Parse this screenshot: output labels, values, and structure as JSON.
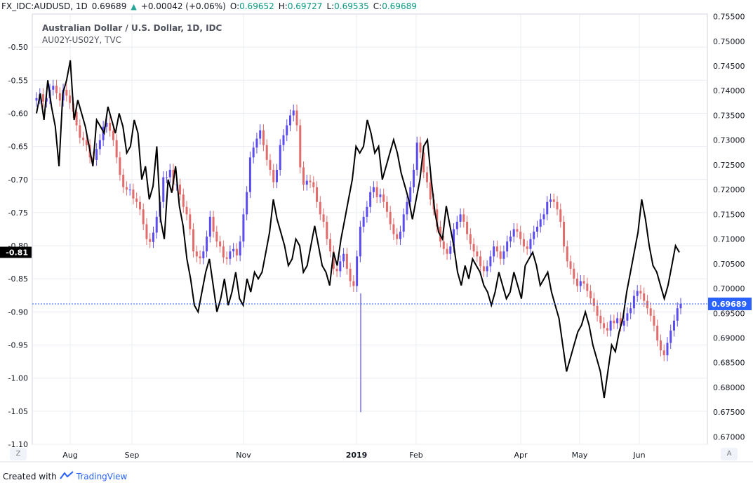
{
  "header": {
    "symbol": "FX_IDC:AUDUSD, 1D",
    "last": "0.69689",
    "change": "+0.00042 (+0.06%)",
    "o_label": "O:",
    "o_val": "0.69652",
    "h_label": "H:",
    "h_val": "0.69727",
    "l_label": "L:",
    "l_val": "0.69535",
    "c_label": "C:",
    "c_val": "0.69689"
  },
  "legend": {
    "title": "Australian Dollar / U.S. Dollar, 1D, IDC",
    "series2": "AU02Y-US02Y, TVC"
  },
  "footer": {
    "created_with": "Created with",
    "brand": "TradingView"
  },
  "buttons": {
    "left": "Z",
    "right": "A"
  },
  "colors": {
    "up": "#5b4cf0",
    "down": "#e26b6b",
    "spread": "#000000",
    "price_tag": "#2962ff",
    "grid": "#e9ecf2"
  },
  "chart_data": {
    "type": "line",
    "title": "Australian Dollar / U.S. Dollar, 1D, IDC",
    "x_tick_labels": [
      "Aug",
      "Sep",
      "Nov",
      "2019",
      "Feb",
      "Apr",
      "May",
      "Jun"
    ],
    "left_axis": {
      "label": "AU02Y-US02Y",
      "ylim": [
        -1.1,
        -0.45
      ],
      "ticks": [
        "-0.50",
        "-0.55",
        "-0.60",
        "-0.65",
        "-0.70",
        "-0.75",
        "-0.80",
        "-0.85",
        "-0.90",
        "-0.95",
        "-1.00",
        "-1.05",
        "-1.10"
      ],
      "current": "-0.81"
    },
    "right_axis": {
      "label": "AUDUSD",
      "ylim": [
        0.6685,
        0.7555
      ],
      "ticks": [
        "0.75500",
        "0.75000",
        "0.74500",
        "0.74000",
        "0.73500",
        "0.73000",
        "0.72500",
        "0.72000",
        "0.71500",
        "0.71000",
        "0.70500",
        "0.70000",
        "0.69500",
        "0.69000",
        "0.68500",
        "0.68000",
        "0.67500",
        "0.67000"
      ],
      "current": "0.69689"
    },
    "series": [
      {
        "name": "AU02Y-US02Y, TVC",
        "type": "line",
        "values": [
          -0.6,
          -0.57,
          -0.61,
          -0.55,
          -0.59,
          -0.62,
          -0.68,
          -0.57,
          -0.55,
          -0.52,
          -0.61,
          -0.58,
          -0.6,
          -0.62,
          -0.65,
          -0.68,
          -0.61,
          -0.62,
          -0.63,
          -0.59,
          -0.61,
          -0.63,
          -0.6,
          -0.62,
          -0.66,
          -0.65,
          -0.61,
          -0.63,
          -0.7,
          -0.68,
          -0.73,
          -0.71,
          -0.65,
          -0.76,
          -0.79,
          -0.7,
          -0.72,
          -0.68,
          -0.74,
          -0.77,
          -0.82,
          -0.85,
          -0.89,
          -0.9,
          -0.87,
          -0.84,
          -0.82,
          -0.86,
          -0.9,
          -0.88,
          -0.85,
          -0.89,
          -0.87,
          -0.84,
          -0.88,
          -0.89,
          -0.85,
          -0.87,
          -0.84,
          -0.85,
          -0.84,
          -0.81,
          -0.78,
          -0.73,
          -0.76,
          -0.78,
          -0.8,
          -0.83,
          -0.82,
          -0.79,
          -0.8,
          -0.84,
          -0.83,
          -0.8,
          -0.77,
          -0.8,
          -0.83,
          -0.84,
          -0.86,
          -0.81,
          -0.83,
          -0.79,
          -0.76,
          -0.73,
          -0.7,
          -0.65,
          -0.66,
          -0.65,
          -0.61,
          -0.63,
          -0.66,
          -0.65,
          -0.7,
          -0.68,
          -0.66,
          -0.64,
          -0.66,
          -0.69,
          -0.71,
          -0.73,
          -0.76,
          -0.73,
          -0.7,
          -0.65,
          -0.64,
          -0.7,
          -0.75,
          -0.78,
          -0.79,
          -0.74,
          -0.77,
          -0.8,
          -0.84,
          -0.86,
          -0.83,
          -0.85,
          -0.82,
          -0.83,
          -0.84,
          -0.86,
          -0.87,
          -0.89,
          -0.87,
          -0.84,
          -0.86,
          -0.88,
          -0.87,
          -0.84,
          -0.86,
          -0.88,
          -0.83,
          -0.82,
          -0.81,
          -0.83,
          -0.86,
          -0.85,
          -0.84,
          -0.87,
          -0.89,
          -0.91,
          -0.95,
          -0.99,
          -0.97,
          -0.95,
          -0.93,
          -0.92,
          -0.9,
          -0.92,
          -0.95,
          -0.97,
          -0.99,
          -1.03,
          -0.99,
          -0.95,
          -0.96,
          -0.93,
          -0.91,
          -0.87,
          -0.84,
          -0.81,
          -0.78,
          -0.73,
          -0.76,
          -0.8,
          -0.83,
          -0.84,
          -0.86,
          -0.88,
          -0.86,
          -0.83,
          -0.8,
          -0.81
        ]
      },
      {
        "name": "AUDUSD",
        "type": "candlestick",
        "close": [
          0.7385,
          0.7393,
          0.7378,
          0.7385,
          0.7402,
          0.741,
          0.7395,
          0.738,
          0.7402,
          0.739,
          0.7375,
          0.7357,
          0.733,
          0.7305,
          0.73,
          0.729,
          0.7265,
          0.726,
          0.7282,
          0.73,
          0.7327,
          0.7335,
          0.7319,
          0.73,
          0.7265,
          0.723,
          0.7205,
          0.72,
          0.72,
          0.7182,
          0.7175,
          0.716,
          0.713,
          0.71,
          0.7094,
          0.7113,
          0.7145,
          0.7175,
          0.7225,
          0.7225,
          0.724,
          0.721,
          0.721,
          0.719,
          0.7165,
          0.715,
          0.712,
          0.7075,
          0.7065,
          0.7061,
          0.7075,
          0.7105,
          0.7145,
          0.7115,
          0.7095,
          0.7085,
          0.7063,
          0.706,
          0.7075,
          0.708,
          0.7067,
          0.7095,
          0.715,
          0.7195,
          0.7265,
          0.7285,
          0.7303,
          0.732,
          0.729,
          0.726,
          0.724,
          0.7215,
          0.724,
          0.729,
          0.731,
          0.733,
          0.735,
          0.736,
          0.733,
          0.7245,
          0.721,
          0.7218,
          0.7215,
          0.7205,
          0.7175,
          0.715,
          0.7135,
          0.71,
          0.7075,
          0.704,
          0.7035,
          0.7055,
          0.707,
          0.704,
          0.7015,
          0.7005,
          0.7065,
          0.7125,
          0.7145,
          0.7165,
          0.7195,
          0.7205,
          0.7185,
          0.719,
          0.7175,
          0.7155,
          0.713,
          0.711,
          0.71,
          0.7115,
          0.715,
          0.7175,
          0.7205,
          0.724,
          0.7295,
          0.7275,
          0.7235,
          0.7215,
          0.718,
          0.716,
          0.7125,
          0.7095,
          0.708,
          0.707,
          0.7085,
          0.712,
          0.7135,
          0.715,
          0.7135,
          0.711,
          0.709,
          0.7075,
          0.7065,
          0.7045,
          0.7035,
          0.7045,
          0.7065,
          0.7085,
          0.7075,
          0.706,
          0.7075,
          0.7095,
          0.7105,
          0.712,
          0.7115,
          0.71,
          0.7085,
          0.708,
          0.71,
          0.7115,
          0.7125,
          0.714,
          0.715,
          0.7175,
          0.718,
          0.7175,
          0.716,
          0.7135,
          0.7085,
          0.7055,
          0.704,
          0.702,
          0.7005,
          0.7015,
          0.701,
          0.6995,
          0.698,
          0.6965,
          0.6945,
          0.693,
          0.692,
          0.6915,
          0.6935,
          0.693,
          0.694,
          0.6925,
          0.6935,
          0.695,
          0.696,
          0.6985,
          0.6995,
          0.699,
          0.6975,
          0.696,
          0.6945,
          0.6925,
          0.6895,
          0.6875,
          0.6865,
          0.689,
          0.6915,
          0.6935,
          0.696,
          0.6969
        ]
      }
    ],
    "annotations": []
  }
}
